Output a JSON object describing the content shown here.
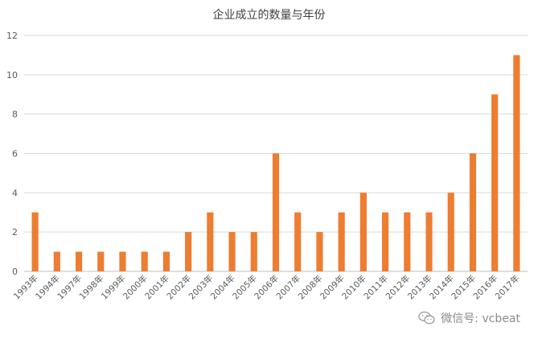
{
  "chart_data": {
    "type": "bar",
    "title": "企业成立的数量与年份",
    "xlabel": "",
    "ylabel": "",
    "ylim": [
      0,
      12
    ],
    "yticks": [
      0,
      2,
      4,
      6,
      8,
      10,
      12
    ],
    "grid": true,
    "bar_color": "#ED7D31",
    "categories": [
      "1993年",
      "1994年",
      "1997年",
      "1998年",
      "1999年",
      "2000年",
      "2001年",
      "2002年",
      "2003年",
      "2004年",
      "2005年",
      "2006年",
      "2007年",
      "2008年",
      "2009年",
      "2010年",
      "2011年",
      "2012年",
      "2013年",
      "2014年",
      "2015年",
      "2016年",
      "2017年"
    ],
    "values": [
      3,
      1,
      1,
      1,
      1,
      1,
      1,
      2,
      3,
      2,
      2,
      6,
      3,
      2,
      3,
      4,
      3,
      3,
      3,
      4,
      6,
      9,
      11
    ]
  },
  "watermark": {
    "icon": "wechat-icon",
    "text": "微信号: vcbeat"
  }
}
